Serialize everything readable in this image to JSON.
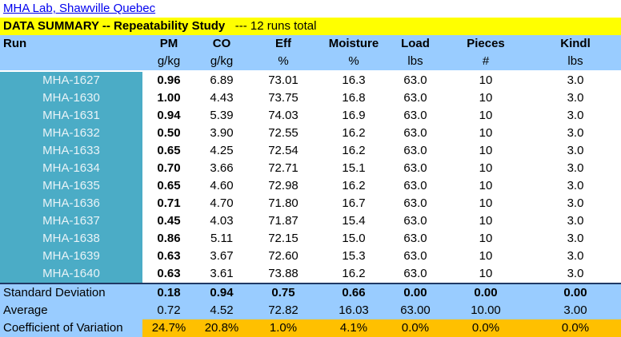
{
  "header": {
    "lab_title": "MHA Lab, Shawville Quebec",
    "summary_title": "DATA SUMMARY -- Repeatability Study",
    "summary_note": "--- 12 runs total"
  },
  "columns": {
    "names": [
      "Run",
      "PM",
      "CO",
      "Eff",
      "Moisture",
      "Load",
      "Pieces",
      "Kindl"
    ],
    "units": [
      "",
      "g/kg",
      "g/kg",
      "%",
      "%",
      "lbs",
      "#",
      "lbs"
    ]
  },
  "rows": [
    [
      "MHA-1627",
      "0.96",
      "6.89",
      "73.01",
      "16.3",
      "63.0",
      "10",
      "3.0"
    ],
    [
      "MHA-1630",
      "1.00",
      "4.43",
      "73.75",
      "16.8",
      "63.0",
      "10",
      "3.0"
    ],
    [
      "MHA-1631",
      "0.94",
      "5.39",
      "74.03",
      "16.9",
      "63.0",
      "10",
      "3.0"
    ],
    [
      "MHA-1632",
      "0.50",
      "3.90",
      "72.55",
      "16.2",
      "63.0",
      "10",
      "3.0"
    ],
    [
      "MHA-1633",
      "0.65",
      "4.25",
      "72.54",
      "16.2",
      "63.0",
      "10",
      "3.0"
    ],
    [
      "MHA-1634",
      "0.70",
      "3.66",
      "72.71",
      "15.1",
      "63.0",
      "10",
      "3.0"
    ],
    [
      "MHA-1635",
      "0.65",
      "4.60",
      "72.98",
      "16.2",
      "63.0",
      "10",
      "3.0"
    ],
    [
      "MHA-1636",
      "0.71",
      "4.70",
      "71.80",
      "16.7",
      "63.0",
      "10",
      "3.0"
    ],
    [
      "MHA-1637",
      "0.45",
      "4.03",
      "71.87",
      "15.4",
      "63.0",
      "10",
      "3.0"
    ],
    [
      "MHA-1638",
      "0.86",
      "5.11",
      "72.15",
      "15.0",
      "63.0",
      "10",
      "3.0"
    ],
    [
      "MHA-1639",
      "0.63",
      "3.67",
      "72.60",
      "15.3",
      "63.0",
      "10",
      "3.0"
    ],
    [
      "MHA-1640",
      "0.63",
      "3.61",
      "73.88",
      "16.2",
      "63.0",
      "10",
      "3.0"
    ]
  ],
  "stats": [
    {
      "label": "Standard Deviation",
      "values": [
        "0.18",
        "0.94",
        "0.75",
        "0.66",
        "0.00",
        "0.00",
        "0.00"
      ]
    },
    {
      "label": "Average",
      "values": [
        "0.72",
        "4.52",
        "72.82",
        "16.03",
        "63.00",
        "10.00",
        "3.00"
      ]
    },
    {
      "label": "Coefficient of Variation",
      "values": [
        "24.7%",
        "20.8%",
        "1.0%",
        "4.1%",
        "0.0%",
        "0.0%",
        "0.0%"
      ]
    }
  ],
  "colors": {
    "summary_bar": "#ffff00",
    "header_bg": "#99ccff",
    "run_cell_bg": "#4bacc6",
    "cov_bg": "#ffc000",
    "link": "#0000ee"
  }
}
